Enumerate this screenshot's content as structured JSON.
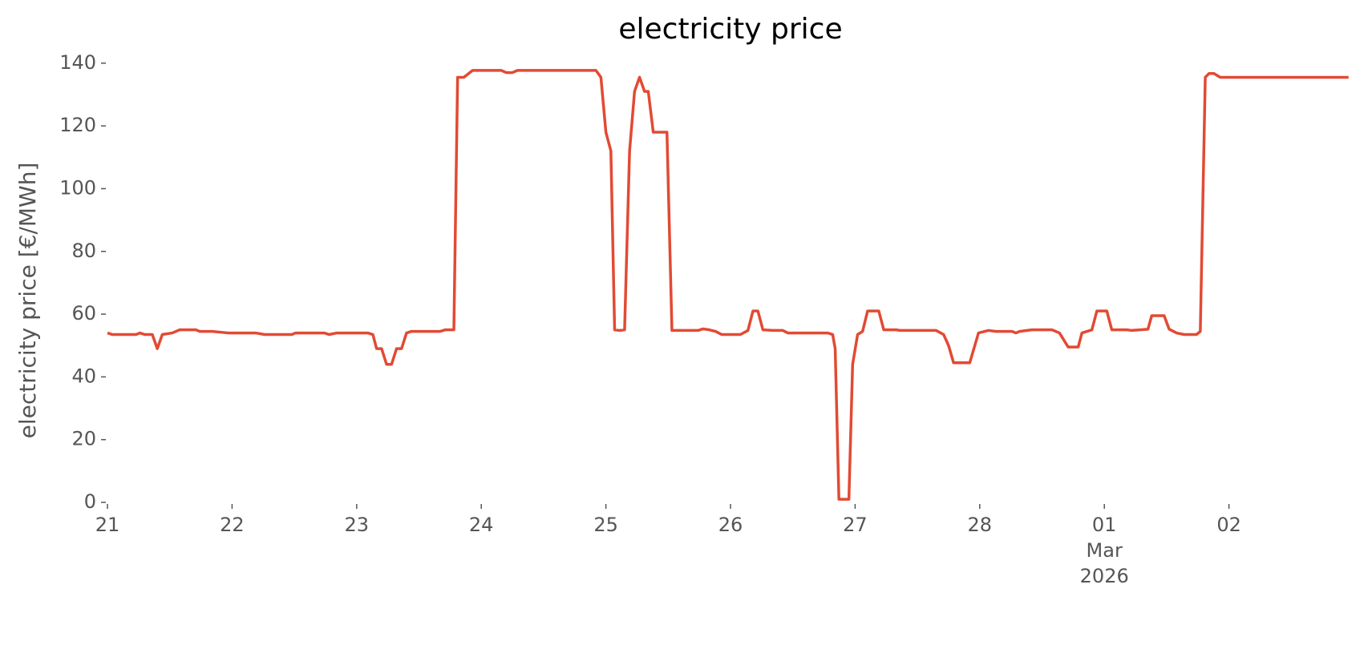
{
  "chart_data": {
    "type": "line",
    "title": "electricity price",
    "ylabel": "electricity price [€/MWh]",
    "xlim": [
      0,
      10
    ],
    "ylim": [
      0,
      142
    ],
    "yticks": [
      0,
      20,
      40,
      60,
      80,
      100,
      120,
      140
    ],
    "xticks": [
      {
        "value": 0,
        "label": "21"
      },
      {
        "value": 1,
        "label": "22"
      },
      {
        "value": 2,
        "label": "23"
      },
      {
        "value": 3,
        "label": "24"
      },
      {
        "value": 4,
        "label": "25"
      },
      {
        "value": 5,
        "label": "26"
      },
      {
        "value": 6,
        "label": "27"
      },
      {
        "value": 7,
        "label": "28"
      },
      {
        "value": 8,
        "label": "01\nMar\n2026"
      },
      {
        "value": 9,
        "label": "02"
      }
    ],
    "grid": false,
    "series": [
      {
        "name": "electricity price",
        "color": "#E24A33",
        "x": [
          0,
          0.04,
          0.23,
          0.26,
          0.3,
          0.36,
          0.4,
          0.44,
          0.52,
          0.58,
          0.71,
          0.74,
          0.84,
          0.97,
          1.19,
          1.26,
          1.48,
          1.51,
          1.74,
          1.78,
          1.84,
          2.09,
          2.13,
          2.16,
          2.2,
          2.24,
          2.28,
          2.32,
          2.36,
          2.4,
          2.44,
          2.67,
          2.71,
          2.78,
          2.81,
          2.86,
          2.93,
          3.16,
          3.2,
          3.25,
          3.29,
          3.92,
          3.96,
          4.0,
          4.04,
          4.07,
          4.11,
          4.15,
          4.19,
          4.23,
          4.27,
          4.31,
          4.34,
          4.38,
          4.49,
          4.53,
          4.74,
          4.78,
          4.83,
          4.88,
          4.93,
          5.08,
          5.14,
          5.18,
          5.22,
          5.26,
          5.34,
          5.42,
          5.46,
          5.78,
          5.82,
          5.84,
          5.87,
          5.95,
          5.98,
          6.02,
          6.06,
          6.1,
          6.19,
          6.23,
          6.33,
          6.36,
          6.65,
          6.71,
          6.75,
          6.79,
          6.92,
          6.99,
          7.07,
          7.13,
          7.26,
          7.29,
          7.32,
          7.42,
          7.58,
          7.64,
          7.71,
          7.79,
          7.82,
          7.9,
          7.94,
          8.02,
          8.06,
          8.18,
          8.22,
          8.29,
          8.35,
          8.38,
          8.48,
          8.52,
          8.58,
          8.64,
          8.74,
          8.77,
          8.81,
          8.84,
          8.88,
          8.93,
          9.08,
          9.96
        ],
        "values": [
          54,
          53.5,
          53.5,
          54,
          53.5,
          53.5,
          49,
          53.5,
          54,
          55,
          55,
          54.5,
          54.5,
          54,
          54,
          53.5,
          53.5,
          54,
          54,
          53.5,
          54,
          54,
          53.5,
          49,
          49,
          44,
          44,
          49,
          49,
          54,
          54.5,
          54.5,
          55,
          55,
          135.5,
          135.5,
          137.7,
          137.7,
          137,
          137,
          137.7,
          137.7,
          135.5,
          118,
          112,
          55,
          54.8,
          55,
          112,
          131,
          135.5,
          131,
          131,
          118,
          118,
          54.8,
          54.8,
          55.3,
          55,
          54.5,
          53.5,
          53.5,
          54.8,
          61,
          61,
          55,
          54.8,
          54.8,
          54,
          54,
          53.5,
          49,
          1,
          1,
          44,
          53.5,
          54.5,
          61,
          61,
          55,
          55,
          54.8,
          54.8,
          53.5,
          50,
          44.5,
          44.5,
          54,
          54.8,
          54.5,
          54.5,
          54,
          54.5,
          55,
          55,
          54,
          49.5,
          49.5,
          54,
          55,
          61,
          61,
          55,
          55,
          54.8,
          55,
          55.2,
          59.5,
          59.5,
          55.2,
          54,
          53.5,
          53.5,
          54.5,
          135.5,
          136.7,
          136.7,
          135.5,
          135.5,
          135.5
        ]
      }
    ]
  }
}
